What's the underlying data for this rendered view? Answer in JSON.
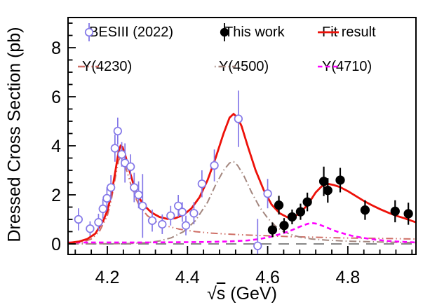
{
  "figure": {
    "ylabel": "Dressed Cross Section (pb)",
    "xlabel_radical": "√",
    "xlabel_radicand": "s",
    "xlabel_suffix": " (GeV)"
  },
  "legend": {
    "row1": [
      {
        "label": "BESIII (2022)",
        "marker": "open-circle",
        "color": "#8478e8"
      },
      {
        "label": "This work",
        "marker": "filled-circle",
        "color": "#000000"
      },
      {
        "label": "Fit result",
        "marker": "solid-line",
        "color": "#ed1109"
      }
    ],
    "row2": [
      {
        "label": "Y(4230)",
        "marker": "dashdotdot-line",
        "color": "#cf6f66"
      },
      {
        "label": "Y(4500)",
        "marker": "dashdot-line",
        "color": "#a3867e"
      },
      {
        "label": "Y(4710)",
        "marker": "dashed-line",
        "color": "#ff00ff"
      }
    ]
  },
  "chart_data": {
    "type": "line",
    "title": "",
    "xlabel": "√s (GeV)",
    "ylabel": "Dressed Cross Section (pb)",
    "xlim": [
      4.102,
      4.97
    ],
    "ylim": [
      -0.43,
      9.23
    ],
    "grid": false,
    "legend_position": "top-inside",
    "xticks": {
      "major": [
        4.2,
        4.4,
        4.6,
        4.8
      ],
      "labels": [
        "4.2",
        "4.4",
        "4.6",
        "4.8"
      ],
      "minor_step": 0.04
    },
    "yticks": {
      "major": [
        0,
        2,
        4,
        6,
        8
      ],
      "labels": [
        "0",
        "2",
        "4",
        "6",
        "8"
      ],
      "minor_step": 0.5
    },
    "series": [
      {
        "name": "BESIII (2022)",
        "type": "scatter",
        "marker": "open-circle",
        "color": "#8478e8",
        "points": [
          [
            4.128,
            1.0,
            0.45
          ],
          [
            4.157,
            0.62,
            0.3
          ],
          [
            4.178,
            0.88,
            0.35
          ],
          [
            4.189,
            1.43,
            0.4
          ],
          [
            4.199,
            1.86,
            0.45
          ],
          [
            4.209,
            2.3,
            0.5
          ],
          [
            4.219,
            3.9,
            0.55
          ],
          [
            4.226,
            4.6,
            0.55
          ],
          [
            4.236,
            3.65,
            0.5
          ],
          [
            4.244,
            3.3,
            0.8
          ],
          [
            4.258,
            3.15,
            0.5
          ],
          [
            4.267,
            2.3,
            0.6
          ],
          [
            4.278,
            2.0,
            0.55
          ],
          [
            4.288,
            1.55,
            1.3
          ],
          [
            4.312,
            0.95,
            0.45
          ],
          [
            4.337,
            0.8,
            0.4
          ],
          [
            4.358,
            1.15,
            0.4
          ],
          [
            4.377,
            1.55,
            0.45
          ],
          [
            4.387,
            1.3,
            0.4
          ],
          [
            4.396,
            0.75,
            0.4
          ],
          [
            4.416,
            1.25,
            0.45
          ],
          [
            4.436,
            2.45,
            0.55
          ],
          [
            4.467,
            3.2,
            0.65
          ],
          [
            4.527,
            5.1,
            1.15
          ],
          [
            4.575,
            -0.08,
            1.1
          ],
          [
            4.6,
            2.05,
            0.6
          ]
        ]
      },
      {
        "name": "This work",
        "type": "scatter",
        "marker": "filled-circle",
        "color": "#000000",
        "points": [
          [
            4.612,
            0.57,
            0.3
          ],
          [
            4.628,
            1.58,
            0.38
          ],
          [
            4.641,
            0.75,
            0.3
          ],
          [
            4.661,
            1.1,
            0.3
          ],
          [
            4.682,
            1.31,
            0.33
          ],
          [
            4.699,
            1.71,
            0.38
          ],
          [
            4.74,
            2.55,
            0.6
          ],
          [
            4.75,
            2.18,
            0.5
          ],
          [
            4.781,
            2.6,
            0.5
          ],
          [
            4.843,
            1.38,
            0.4
          ],
          [
            4.918,
            1.33,
            0.45
          ],
          [
            4.951,
            1.23,
            0.45
          ]
        ]
      }
    ],
    "curves": [
      {
        "name": "Y(4230)",
        "color": "#cf6f66",
        "style": "dashdotdot",
        "width": 2,
        "points": [
          [
            4.102,
            0.02
          ],
          [
            4.14,
            0.08
          ],
          [
            4.16,
            0.2
          ],
          [
            4.18,
            0.5
          ],
          [
            4.2,
            1.15
          ],
          [
            4.21,
            1.8
          ],
          [
            4.22,
            2.7
          ],
          [
            4.228,
            3.4
          ],
          [
            4.233,
            3.55
          ],
          [
            4.24,
            3.4
          ],
          [
            4.25,
            2.9
          ],
          [
            4.26,
            2.35
          ],
          [
            4.27,
            1.9
          ],
          [
            4.28,
            1.55
          ],
          [
            4.3,
            1.15
          ],
          [
            4.32,
            0.92
          ],
          [
            4.35,
            0.72
          ],
          [
            4.38,
            0.6
          ],
          [
            4.42,
            0.5
          ],
          [
            4.46,
            0.44
          ],
          [
            4.5,
            0.4
          ],
          [
            4.55,
            0.36
          ],
          [
            4.6,
            0.33
          ],
          [
            4.65,
            0.3
          ],
          [
            4.7,
            0.28
          ],
          [
            4.75,
            0.26
          ],
          [
            4.8,
            0.24
          ],
          [
            4.85,
            0.23
          ],
          [
            4.9,
            0.22
          ],
          [
            4.97,
            0.2
          ]
        ]
      },
      {
        "name": "Y(4500)",
        "color": "#a3867e",
        "style": "dashdot",
        "width": 2,
        "points": [
          [
            4.102,
            0.0
          ],
          [
            4.25,
            0.01
          ],
          [
            4.3,
            0.05
          ],
          [
            4.33,
            0.12
          ],
          [
            4.36,
            0.25
          ],
          [
            4.39,
            0.5
          ],
          [
            4.42,
            0.95
          ],
          [
            4.45,
            1.7
          ],
          [
            4.47,
            2.4
          ],
          [
            4.49,
            3.0
          ],
          [
            4.505,
            3.3
          ],
          [
            4.515,
            3.35
          ],
          [
            4.525,
            3.2
          ],
          [
            4.54,
            2.8
          ],
          [
            4.56,
            2.1
          ],
          [
            4.58,
            1.5
          ],
          [
            4.6,
            1.05
          ],
          [
            4.62,
            0.72
          ],
          [
            4.64,
            0.5
          ],
          [
            4.66,
            0.37
          ],
          [
            4.68,
            0.28
          ],
          [
            4.71,
            0.2
          ],
          [
            4.75,
            0.15
          ],
          [
            4.8,
            0.11
          ],
          [
            4.85,
            0.09
          ],
          [
            4.9,
            0.07
          ],
          [
            4.97,
            0.05
          ]
        ]
      },
      {
        "name": "Y(4710)",
        "color": "#ff00ff",
        "style": "dashed",
        "width": 2.6,
        "points": [
          [
            4.102,
            0.06
          ],
          [
            4.2,
            0.06
          ],
          [
            4.3,
            0.06
          ],
          [
            4.4,
            0.07
          ],
          [
            4.45,
            0.08
          ],
          [
            4.5,
            0.1
          ],
          [
            4.55,
            0.14
          ],
          [
            4.58,
            0.2
          ],
          [
            4.61,
            0.3
          ],
          [
            4.64,
            0.44
          ],
          [
            4.66,
            0.56
          ],
          [
            4.68,
            0.7
          ],
          [
            4.7,
            0.82
          ],
          [
            4.71,
            0.85
          ],
          [
            4.72,
            0.83
          ],
          [
            4.73,
            0.78
          ],
          [
            4.75,
            0.65
          ],
          [
            4.77,
            0.52
          ],
          [
            4.79,
            0.42
          ],
          [
            4.81,
            0.33
          ],
          [
            4.84,
            0.24
          ],
          [
            4.87,
            0.17
          ],
          [
            4.9,
            0.12
          ],
          [
            4.93,
            0.09
          ],
          [
            4.97,
            0.06
          ]
        ]
      },
      {
        "name": "Fit result",
        "color": "#ed1109",
        "style": "solid",
        "width": 2.8,
        "points": [
          [
            4.102,
            0.04
          ],
          [
            4.13,
            0.1
          ],
          [
            4.15,
            0.2
          ],
          [
            4.17,
            0.42
          ],
          [
            4.19,
            0.95
          ],
          [
            4.2,
            1.35
          ],
          [
            4.21,
            2.0
          ],
          [
            4.22,
            2.95
          ],
          [
            4.228,
            3.75
          ],
          [
            4.233,
            4.0
          ],
          [
            4.238,
            3.95
          ],
          [
            4.245,
            3.6
          ],
          [
            4.255,
            3.0
          ],
          [
            4.265,
            2.45
          ],
          [
            4.275,
            2.0
          ],
          [
            4.29,
            1.6
          ],
          [
            4.31,
            1.28
          ],
          [
            4.33,
            1.1
          ],
          [
            4.35,
            1.02
          ],
          [
            4.37,
            1.05
          ],
          [
            4.39,
            1.18
          ],
          [
            4.41,
            1.45
          ],
          [
            4.43,
            1.9
          ],
          [
            4.45,
            2.6
          ],
          [
            4.47,
            3.5
          ],
          [
            4.49,
            4.5
          ],
          [
            4.505,
            5.15
          ],
          [
            4.515,
            5.3
          ],
          [
            4.525,
            5.15
          ],
          [
            4.535,
            4.8
          ],
          [
            4.55,
            4.0
          ],
          [
            4.57,
            3.0
          ],
          [
            4.59,
            2.2
          ],
          [
            4.61,
            1.6
          ],
          [
            4.63,
            1.25
          ],
          [
            4.65,
            1.08
          ],
          [
            4.665,
            1.1
          ],
          [
            4.68,
            1.25
          ],
          [
            4.7,
            1.6
          ],
          [
            4.72,
            2.1
          ],
          [
            4.735,
            2.35
          ],
          [
            4.75,
            2.45
          ],
          [
            4.765,
            2.4
          ],
          [
            4.78,
            2.32
          ],
          [
            4.8,
            2.15
          ],
          [
            4.82,
            1.95
          ],
          [
            4.84,
            1.75
          ],
          [
            4.86,
            1.58
          ],
          [
            4.88,
            1.42
          ],
          [
            4.9,
            1.28
          ],
          [
            4.92,
            1.15
          ],
          [
            4.94,
            1.05
          ],
          [
            4.97,
            0.88
          ]
        ]
      },
      {
        "name": "zero-line",
        "color": "#787878",
        "style": "longdash",
        "width": 1.8,
        "points": [
          [
            4.102,
            0
          ],
          [
            4.97,
            0
          ]
        ]
      }
    ]
  }
}
